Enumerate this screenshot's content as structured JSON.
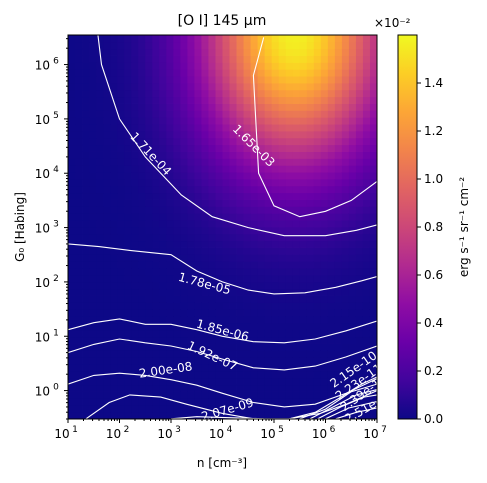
{
  "chart_data": {
    "type": "heatmap",
    "title": "[O I] 145 μm",
    "xlabel": "n [cm⁻³]",
    "ylabel": "G₀ [Habing]",
    "xscale": "log",
    "yscale": "log",
    "xlim": [
      10,
      10000000
    ],
    "ylim": [
      0.3,
      3500000
    ],
    "x_ticks": [
      {
        "value": 10,
        "base": "10",
        "exp": "1"
      },
      {
        "value": 100,
        "base": "10",
        "exp": "2"
      },
      {
        "value": 1000,
        "base": "10",
        "exp": "3"
      },
      {
        "value": 10000,
        "base": "10",
        "exp": "4"
      },
      {
        "value": 100000,
        "base": "10",
        "exp": "5"
      },
      {
        "value": 1000000,
        "base": "10",
        "exp": "6"
      },
      {
        "value": 10000000,
        "base": "10",
        "exp": "7"
      }
    ],
    "y_ticks": [
      {
        "value": 1,
        "base": "10",
        "exp": "0"
      },
      {
        "value": 10,
        "base": "10",
        "exp": "1"
      },
      {
        "value": 100,
        "base": "10",
        "exp": "2"
      },
      {
        "value": 1000,
        "base": "10",
        "exp": "3"
      },
      {
        "value": 10000,
        "base": "10",
        "exp": "4"
      },
      {
        "value": 100000,
        "base": "10",
        "exp": "5"
      },
      {
        "value": 1000000,
        "base": "10",
        "exp": "6"
      }
    ],
    "colormap": "plasma",
    "colorbar": {
      "label": "erg s⁻¹ sr⁻¹ cm⁻²",
      "multiplier": "×10⁻²",
      "range": [
        0.0,
        1.6
      ],
      "ticks": [
        "0.0",
        "0.2",
        "0.4",
        "0.6",
        "0.8",
        "1.0",
        "1.2",
        "1.4"
      ]
    },
    "contours": [
      {
        "level": "1.65e-03",
        "points": [
          [
            4.8,
            6.5
          ],
          [
            4.6,
            5.8
          ],
          [
            4.7,
            4.0
          ],
          [
            5.0,
            3.4
          ],
          [
            5.5,
            3.2
          ],
          [
            6.0,
            3.3
          ],
          [
            6.5,
            3.5
          ],
          [
            7.0,
            3.85
          ]
        ]
      },
      {
        "level": "1.71e-04",
        "points": [
          [
            1.58,
            6.55
          ],
          [
            1.65,
            6.0
          ],
          [
            2.0,
            5.0
          ],
          [
            2.5,
            4.3
          ],
          [
            3.2,
            3.6
          ],
          [
            3.8,
            3.2
          ],
          [
            4.5,
            3.0
          ],
          [
            5.2,
            2.85
          ],
          [
            6.0,
            2.85
          ],
          [
            6.6,
            2.95
          ],
          [
            7.0,
            3.05
          ]
        ]
      },
      {
        "level": "1.78e-05",
        "points": [
          [
            1.0,
            2.7
          ],
          [
            1.6,
            2.65
          ],
          [
            2.2,
            2.58
          ],
          [
            3.0,
            2.5
          ],
          [
            3.5,
            2.2
          ],
          [
            4.0,
            2.0
          ],
          [
            4.5,
            1.85
          ],
          [
            5.0,
            1.78
          ],
          [
            5.6,
            1.8
          ],
          [
            6.2,
            1.9
          ],
          [
            6.7,
            2.02
          ],
          [
            7.0,
            2.1
          ]
        ]
      },
      {
        "level": "1.85e-06",
        "points": [
          [
            1.0,
            1.12
          ],
          [
            1.5,
            1.25
          ],
          [
            2.0,
            1.32
          ],
          [
            2.5,
            1.22
          ],
          [
            3.0,
            1.22
          ],
          [
            3.5,
            1.12
          ],
          [
            4.0,
            1.0
          ],
          [
            4.6,
            0.9
          ],
          [
            5.2,
            0.88
          ],
          [
            5.8,
            0.95
          ],
          [
            6.4,
            1.1
          ],
          [
            7.0,
            1.28
          ]
        ]
      },
      {
        "level": "1.92e-07",
        "points": [
          [
            1.0,
            0.7
          ],
          [
            1.5,
            0.85
          ],
          [
            2.0,
            0.95
          ],
          [
            2.5,
            0.88
          ],
          [
            3.0,
            0.82
          ],
          [
            3.5,
            0.72
          ],
          [
            4.0,
            0.58
          ],
          [
            4.6,
            0.42
          ],
          [
            5.2,
            0.38
          ],
          [
            5.8,
            0.45
          ],
          [
            6.4,
            0.62
          ],
          [
            7.0,
            0.82
          ]
        ]
      },
      {
        "level": "2.00e-08",
        "points": [
          [
            1.0,
            0.12
          ],
          [
            1.5,
            0.28
          ],
          [
            2.0,
            0.32
          ],
          [
            2.5,
            0.28
          ],
          [
            3.0,
            0.2
          ],
          [
            3.5,
            0.1
          ],
          [
            4.0,
            -0.05
          ],
          [
            4.6,
            -0.22
          ],
          [
            5.2,
            -0.3
          ],
          [
            5.8,
            -0.25
          ],
          [
            6.4,
            -0.05
          ],
          [
            7.0,
            0.22
          ]
        ]
      },
      {
        "level": "2.07e-09",
        "points": [
          [
            1.35,
            -0.52
          ],
          [
            1.8,
            -0.22
          ],
          [
            2.2,
            -0.08
          ],
          [
            2.8,
            -0.12
          ],
          [
            3.3,
            -0.25
          ],
          [
            4.0,
            -0.42
          ],
          [
            4.6,
            -0.52
          ],
          [
            5.3,
            -0.52
          ],
          [
            5.9,
            -0.42
          ],
          [
            6.4,
            -0.25
          ],
          [
            7.0,
            0.0
          ]
        ]
      },
      {
        "level": "",
        "points": [
          [
            3.0,
            -0.52
          ],
          [
            3.5,
            -0.48
          ],
          [
            4.2,
            -0.5
          ],
          [
            4.8,
            -0.52
          ]
        ]
      },
      {
        "level": "2.15e-10",
        "points": [
          [
            5.3,
            -0.52
          ],
          [
            5.8,
            -0.4
          ],
          [
            6.3,
            -0.12
          ],
          [
            6.7,
            0.12
          ],
          [
            7.0,
            0.25
          ]
        ]
      },
      {
        "level": "",
        "points": [
          [
            5.5,
            -0.52
          ],
          [
            6.0,
            -0.34
          ],
          [
            6.5,
            -0.02
          ],
          [
            7.0,
            0.12
          ]
        ]
      },
      {
        "level": "2.23e-11",
        "points": [
          [
            5.7,
            -0.52
          ],
          [
            6.15,
            -0.3
          ],
          [
            6.6,
            -0.08
          ],
          [
            7.0,
            0.02
          ]
        ]
      },
      {
        "level": "",
        "points": [
          [
            5.85,
            -0.52
          ],
          [
            6.3,
            -0.3
          ],
          [
            6.75,
            -0.12
          ],
          [
            7.0,
            -0.08
          ]
        ]
      },
      {
        "level": "2.39e-13",
        "points": [
          [
            6.0,
            -0.52
          ],
          [
            6.45,
            -0.32
          ],
          [
            7.0,
            -0.2
          ]
        ]
      },
      {
        "level": "2.51e-14",
        "points": [
          [
            6.2,
            -0.52
          ],
          [
            6.6,
            -0.4
          ],
          [
            7.0,
            -0.32
          ]
        ]
      }
    ],
    "contour_labels": [
      {
        "text": "1.65e-03",
        "at": [
          4.6,
          4.5
        ],
        "angle": 45
      },
      {
        "text": "1.71e-04",
        "at": [
          2.6,
          4.35
        ],
        "angle": 47
      },
      {
        "text": "1.78e-05",
        "at": [
          3.65,
          1.96
        ],
        "angle": 15
      },
      {
        "text": "1.85e-06",
        "at": [
          4.0,
          1.1
        ],
        "angle": 15
      },
      {
        "text": "1.92e-07",
        "at": [
          3.8,
          0.63
        ],
        "angle": 25
      },
      {
        "text": "2.00e-08",
        "at": [
          2.9,
          0.37
        ],
        "angle": -8
      },
      {
        "text": "2.07e-09",
        "at": [
          4.1,
          -0.36
        ],
        "angle": -16
      },
      {
        "text": "2.15e-10",
        "at": [
          6.55,
          0.38
        ],
        "angle": -35
      },
      {
        "text": "2.23e-11",
        "at": [
          6.65,
          0.15
        ],
        "angle": -35
      },
      {
        "text": "2.39e-13",
        "at": [
          6.75,
          -0.05
        ],
        "angle": -35
      },
      {
        "text": "2.51e-14",
        "at": [
          6.85,
          -0.3
        ],
        "angle": -30
      }
    ]
  }
}
